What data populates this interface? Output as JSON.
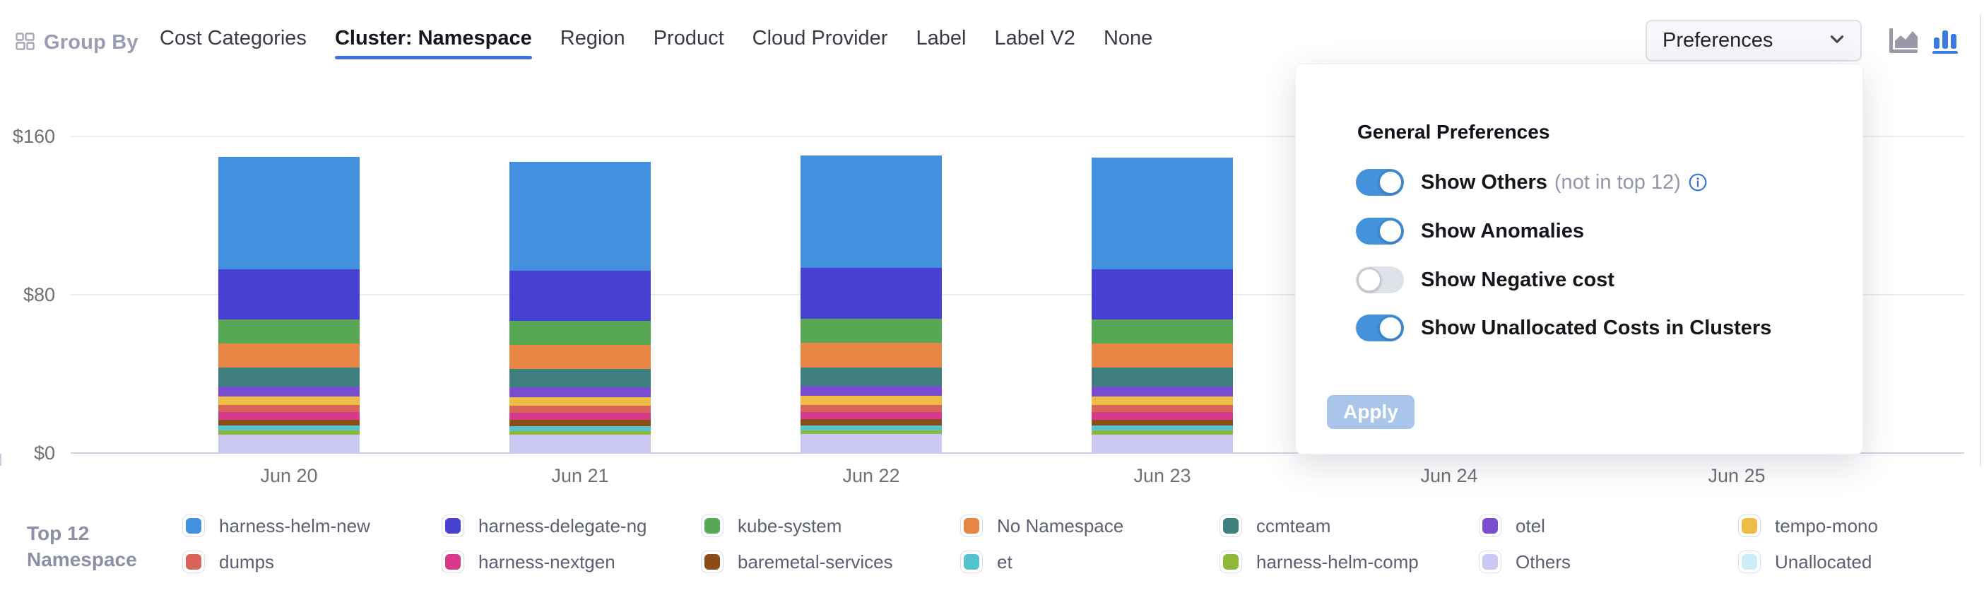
{
  "toolbar": {
    "group_by": {
      "label": "Group By"
    },
    "tabs": [
      {
        "label": "Cost Categories",
        "active": false
      },
      {
        "label": "Cluster: Namespace",
        "active": true
      },
      {
        "label": "Region",
        "active": false
      },
      {
        "label": "Product",
        "active": false
      },
      {
        "label": "Cloud Provider",
        "active": false
      },
      {
        "label": "Label",
        "active": false
      },
      {
        "label": "Label V2",
        "active": false
      },
      {
        "label": "None",
        "active": false
      }
    ],
    "preferences_button": {
      "label": "Preferences"
    },
    "chart_type_icons": [
      {
        "name": "area-chart-icon",
        "active": false,
        "color": "#9a98a8"
      },
      {
        "name": "bar-chart-icon",
        "active": true,
        "color": "#3b7ae3"
      }
    ]
  },
  "preferences_panel": {
    "title": "General Preferences",
    "rows": [
      {
        "label": "Show Others",
        "suffix": "(not in top 12)",
        "has_info_icon": true,
        "state": "on"
      },
      {
        "label": "Show Anomalies",
        "suffix": "",
        "has_info_icon": false,
        "state": "on"
      },
      {
        "label": "Show Negative cost",
        "suffix": "",
        "has_info_icon": false,
        "state": "off"
      },
      {
        "label": "Show Unallocated Costs in Clusters",
        "suffix": "",
        "has_info_icon": false,
        "state": "on"
      }
    ],
    "apply_button": {
      "label": "Apply",
      "enabled": false
    }
  },
  "chart_data": {
    "type": "bar",
    "stacked": true,
    "title": "",
    "x": [
      "Jun 20",
      "Jun 21",
      "Jun 22",
      "Jun 23",
      "Jun 24",
      "Jun 25"
    ],
    "y_tick_labels": [
      "$0",
      "$80",
      "$160"
    ],
    "y_ticks": [
      0,
      80,
      160
    ],
    "ylim": [
      0,
      160
    ],
    "unit": "USD",
    "grid": "horizontal",
    "legend_position": "bottom",
    "stack_order": "bottom_to_top",
    "series": [
      {
        "name": "Others",
        "color": "#cbc9f4",
        "values": [
          9.4,
          9.3,
          9.5,
          9.4,
          0,
          0
        ]
      },
      {
        "name": "harness-helm-comp",
        "color": "#90b838",
        "values": [
          1.9,
          1.9,
          1.9,
          1.9,
          0,
          0
        ]
      },
      {
        "name": "et",
        "color": "#55c3cd",
        "values": [
          2.5,
          2.5,
          2.5,
          2.5,
          0,
          0
        ]
      },
      {
        "name": "baremetal-services",
        "color": "#8a4d15",
        "values": [
          3.1,
          3.1,
          3.1,
          3.1,
          0,
          0
        ]
      },
      {
        "name": "harness-nextgen",
        "color": "#d63a88",
        "values": [
          3.7,
          3.6,
          3.7,
          3.7,
          0,
          0
        ]
      },
      {
        "name": "dumps",
        "color": "#d96459",
        "values": [
          3.7,
          3.7,
          3.7,
          3.7,
          0,
          0
        ]
      },
      {
        "name": "tempo-mono",
        "color": "#edbd45",
        "values": [
          4.4,
          4.3,
          4.4,
          4.4,
          0,
          0
        ]
      },
      {
        "name": "otel",
        "color": "#7a4ccf",
        "values": [
          5.0,
          5.0,
          5.1,
          5.0,
          0,
          0
        ]
      },
      {
        "name": "ccmteam",
        "color": "#3f7f7d",
        "values": [
          9.4,
          9.3,
          9.4,
          9.4,
          0,
          0
        ]
      },
      {
        "name": "No Namespace",
        "color": "#e78544",
        "values": [
          12.2,
          12.1,
          12.3,
          12.2,
          0,
          0
        ]
      },
      {
        "name": "kube-system",
        "color": "#58a755",
        "values": [
          12.1,
          12.0,
          12.2,
          12.1,
          0,
          0
        ]
      },
      {
        "name": "harness-delegate-ng",
        "color": "#4641d2",
        "values": [
          25.6,
          25.4,
          25.7,
          25.5,
          0,
          0
        ]
      },
      {
        "name": "harness-helm-new",
        "color": "#4290de",
        "values": [
          56.5,
          55.0,
          57.0,
          56.2,
          0,
          0
        ]
      },
      {
        "name": "Unallocated",
        "color": "#cdeef8",
        "values": [
          0,
          0,
          0,
          0,
          0,
          0
        ]
      }
    ]
  },
  "legend": {
    "title": "Top 12\nNamespace",
    "items": [
      {
        "label": "harness-helm-new",
        "color": "#4290de"
      },
      {
        "label": "dumps",
        "color": "#d96459"
      },
      {
        "label": "harness-delegate-ng",
        "color": "#4641d2"
      },
      {
        "label": "harness-nextgen",
        "color": "#d63a88"
      },
      {
        "label": "kube-system",
        "color": "#58a755"
      },
      {
        "label": "baremetal-services",
        "color": "#8a4d15"
      },
      {
        "label": "No Namespace",
        "color": "#e78544"
      },
      {
        "label": "et",
        "color": "#55c3cd"
      },
      {
        "label": "ccmteam",
        "color": "#3f7f7d"
      },
      {
        "label": "harness-helm-comp",
        "color": "#90b838"
      },
      {
        "label": "otel",
        "color": "#7a4ccf"
      },
      {
        "label": "Others",
        "color": "#cbc9f4"
      },
      {
        "label": "tempo-mono",
        "color": "#edbd45"
      },
      {
        "label": "Unallocated",
        "color": "#cdeef8"
      }
    ]
  },
  "colors": {
    "accent_blue": "#3f6fdf",
    "toggle_on": "#4392dc",
    "toggle_off": "#dfe2e8",
    "apply_disabled": "#a9c6ea",
    "grid_line": "#ececf0",
    "axis_line": "#cbd4e4"
  }
}
